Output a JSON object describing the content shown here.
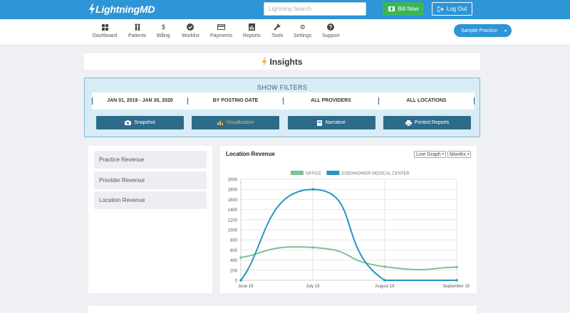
{
  "header": {
    "logo_prefix": "Lightning",
    "logo_suffix": "MD",
    "search_placeholder": "Lightning Search",
    "bill_now_label": "Bill Now",
    "logout_label": "Log Out"
  },
  "nav": {
    "items": [
      {
        "label": "Dashboard",
        "icon": "dashboard-icon"
      },
      {
        "label": "Patients",
        "icon": "patients-icon"
      },
      {
        "label": "Billing",
        "icon": "dollar-icon"
      },
      {
        "label": "Worklist",
        "icon": "check-circle-icon"
      },
      {
        "label": "Payments",
        "icon": "credit-card-icon"
      },
      {
        "label": "Reports",
        "icon": "reports-icon"
      },
      {
        "label": "Tools",
        "icon": "wrench-icon"
      },
      {
        "label": "Settings",
        "icon": "gear-icon"
      },
      {
        "label": "Support",
        "icon": "question-icon"
      }
    ],
    "practice_label": "Sample Practice"
  },
  "page": {
    "title": "Insights"
  },
  "filters": {
    "title": "SHOW FILTERS",
    "date_range": "JAN 01, 2019 - JAN 30, 2020",
    "date_basis": "BY POSTING DATE",
    "providers": "ALL PROVIDERS",
    "locations": "ALL LOCATIONS",
    "buttons": {
      "snapshot": "Snapshot",
      "visualization": "Visualization",
      "narrative": "Narrative",
      "printed_reports": "Printed Reports"
    }
  },
  "sidebar": {
    "items": [
      "Practice Revenue",
      "Provider Revenue",
      "Location Revenue"
    ]
  },
  "chart_card": {
    "chart_type_select": "Line Graph",
    "period_select": "Months"
  },
  "colors": {
    "brand_blue": "#2e95d6",
    "office_green": "#7cc191",
    "eisenhower_blue": "#2596be"
  },
  "chart_data": {
    "type": "line",
    "title": "Location Revenue",
    "categories": [
      "June 19",
      "July 19",
      "August 19",
      "September 19"
    ],
    "ylim": [
      0,
      2000
    ],
    "yticks": [
      0,
      200,
      400,
      600,
      800,
      1000,
      1200,
      1400,
      1600,
      1800,
      2000
    ],
    "grid": true,
    "legend_placement": "top-center",
    "series": [
      {
        "name": "OFFICE",
        "color": "#7cc191",
        "values": [
          450,
          650,
          270,
          260
        ]
      },
      {
        "name": "EISENHOWER MEDICAL CENTER",
        "color": "#2596be",
        "values": [
          0,
          1800,
          0,
          0
        ]
      }
    ]
  }
}
